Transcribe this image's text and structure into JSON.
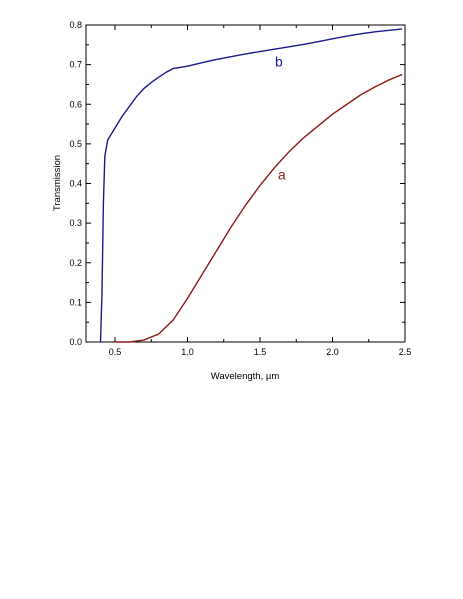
{
  "chart_data": {
    "type": "line",
    "title": "",
    "xlabel": "Wavelength, µm",
    "ylabel": "Transmission",
    "xlim": [
      0.3,
      2.5
    ],
    "ylim": [
      0.0,
      0.8
    ],
    "x_ticks": [
      "0.5",
      "1.0",
      "1.5",
      "2.0",
      "2.5"
    ],
    "y_ticks": [
      "0.0",
      "0.1",
      "0.2",
      "0.3",
      "0.4",
      "0.5",
      "0.6",
      "0.7",
      "0.8"
    ],
    "grid": false,
    "legend": "none",
    "series": [
      {
        "name": "b",
        "color": "#1a1a8c",
        "points": [
          [
            0.4,
            0.0
          ],
          [
            0.41,
            0.12
          ],
          [
            0.42,
            0.35
          ],
          [
            0.43,
            0.47
          ],
          [
            0.45,
            0.51
          ],
          [
            0.5,
            0.54
          ],
          [
            0.55,
            0.57
          ],
          [
            0.6,
            0.595
          ],
          [
            0.65,
            0.62
          ],
          [
            0.7,
            0.64
          ],
          [
            0.75,
            0.655
          ],
          [
            0.8,
            0.668
          ],
          [
            0.85,
            0.68
          ],
          [
            0.9,
            0.69
          ],
          [
            1.0,
            0.696
          ],
          [
            1.1,
            0.705
          ],
          [
            1.2,
            0.713
          ],
          [
            1.3,
            0.72
          ],
          [
            1.4,
            0.727
          ],
          [
            1.5,
            0.733
          ],
          [
            1.6,
            0.739
          ],
          [
            1.7,
            0.745
          ],
          [
            1.8,
            0.751
          ],
          [
            1.9,
            0.758
          ],
          [
            2.0,
            0.765
          ],
          [
            2.1,
            0.772
          ],
          [
            2.2,
            0.778
          ],
          [
            2.3,
            0.783
          ],
          [
            2.4,
            0.787
          ],
          [
            2.48,
            0.79
          ]
        ]
      },
      {
        "name": "a",
        "color": "#8b1a1a",
        "points": [
          [
            0.5,
            0.0
          ],
          [
            0.6,
            0.0
          ],
          [
            0.7,
            0.005
          ],
          [
            0.8,
            0.02
          ],
          [
            0.9,
            0.055
          ],
          [
            1.0,
            0.11
          ],
          [
            1.1,
            0.17
          ],
          [
            1.2,
            0.23
          ],
          [
            1.3,
            0.29
          ],
          [
            1.4,
            0.345
          ],
          [
            1.5,
            0.395
          ],
          [
            1.6,
            0.44
          ],
          [
            1.7,
            0.48
          ],
          [
            1.8,
            0.515
          ],
          [
            1.9,
            0.545
          ],
          [
            2.0,
            0.575
          ],
          [
            2.1,
            0.6
          ],
          [
            2.2,
            0.625
          ],
          [
            2.3,
            0.645
          ],
          [
            2.4,
            0.663
          ],
          [
            2.48,
            0.675
          ]
        ]
      }
    ],
    "annotations": [
      {
        "text": "b",
        "x": 1.63,
        "y": 0.695,
        "color": "#1a1a8c"
      },
      {
        "text": "a",
        "x": 1.65,
        "y": 0.41,
        "color": "#8b1a1a"
      }
    ]
  }
}
